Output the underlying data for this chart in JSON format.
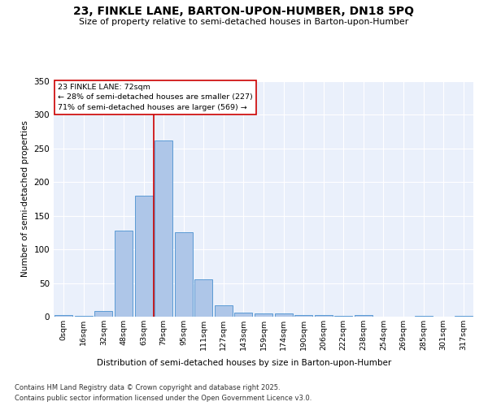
{
  "title": "23, FINKLE LANE, BARTON-UPON-HUMBER, DN18 5PQ",
  "subtitle": "Size of property relative to semi-detached houses in Barton-upon-Humber",
  "xlabel": "Distribution of semi-detached houses by size in Barton-upon-Humber",
  "ylabel": "Number of semi-detached properties",
  "footnote1": "Contains HM Land Registry data © Crown copyright and database right 2025.",
  "footnote2": "Contains public sector information licensed under the Open Government Licence v3.0.",
  "bar_labels": [
    "0sqm",
    "16sqm",
    "32sqm",
    "48sqm",
    "63sqm",
    "79sqm",
    "95sqm",
    "111sqm",
    "127sqm",
    "143sqm",
    "159sqm",
    "174sqm",
    "190sqm",
    "206sqm",
    "222sqm",
    "238sqm",
    "254sqm",
    "269sqm",
    "285sqm",
    "301sqm",
    "317sqm"
  ],
  "bar_values": [
    2,
    1,
    8,
    128,
    180,
    262,
    125,
    55,
    17,
    6,
    5,
    5,
    2,
    2,
    1,
    3,
    0,
    0,
    1,
    0,
    1
  ],
  "bar_color": "#aec6e8",
  "bar_edge_color": "#5b9bd5",
  "bg_color": "#eaf0fb",
  "grid_color": "#ffffff",
  "vline_x": 4.5,
  "vline_color": "#cc0000",
  "annotation_title": "23 FINKLE LANE: 72sqm",
  "annotation_line1": "← 28% of semi-detached houses are smaller (227)",
  "annotation_line2": "71% of semi-detached houses are larger (569) →",
  "annotation_box_color": "#cc0000",
  "ylim": [
    0,
    350
  ],
  "yticks": [
    0,
    50,
    100,
    150,
    200,
    250,
    300,
    350
  ]
}
